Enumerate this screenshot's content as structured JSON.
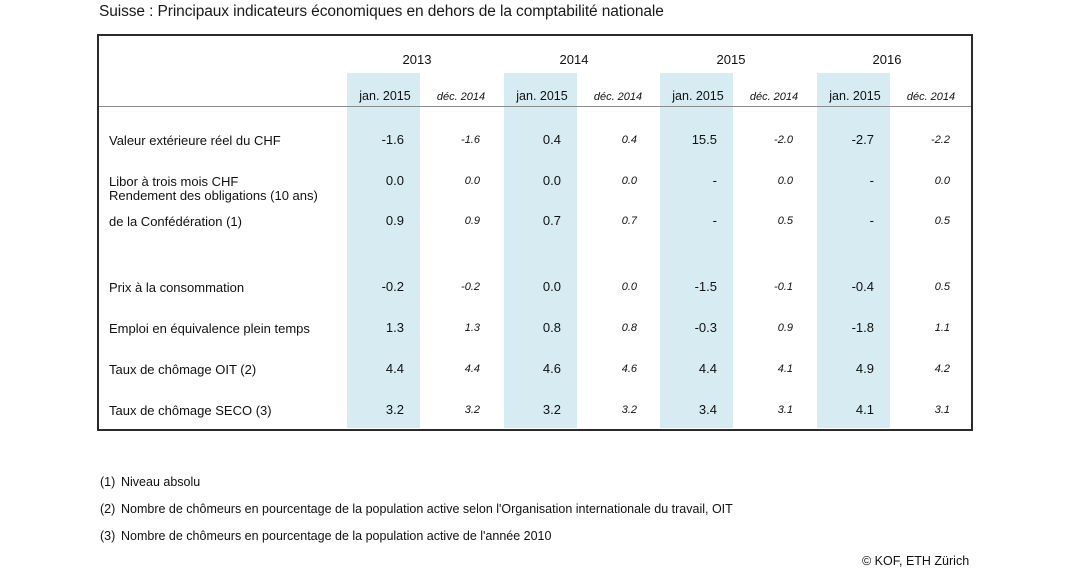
{
  "title": "Suisse : Principaux indicateurs économiques en dehors de la comptabilité nationale",
  "years": [
    "2013",
    "2014",
    "2015",
    "2016"
  ],
  "col_labels": {
    "main": "jan. 2015",
    "sub": "déc. 2014"
  },
  "rows": [
    {
      "label": [
        "Valeur extérieure réel du CHF"
      ],
      "values": [
        "-1.6",
        "-1.6",
        "0.4",
        "0.4",
        "15.5",
        "-2.0",
        "-2.7",
        "-2.2"
      ]
    },
    {
      "label": [
        "Libor à trois mois CHF"
      ],
      "values": [
        "0.0",
        "0.0",
        "0.0",
        "0.0",
        "-",
        "0.0",
        "-",
        "0.0"
      ]
    },
    {
      "label": [
        "Rendement des obligations (10 ans)",
        "de la Confédération (1)"
      ],
      "values": [
        "0.9",
        "0.9",
        "0.7",
        "0.7",
        "-",
        "0.5",
        "-",
        "0.5"
      ]
    },
    {
      "label": [
        "Prix à la consommation"
      ],
      "values": [
        "-0.2",
        "-0.2",
        "0.0",
        "0.0",
        "-1.5",
        "-0.1",
        "-0.4",
        "0.5"
      ]
    },
    {
      "label": [
        "Emploi en équivalence plein temps"
      ],
      "values": [
        "1.3",
        "1.3",
        "0.8",
        "0.8",
        "-0.3",
        "0.9",
        "-1.8",
        "1.1"
      ]
    },
    {
      "label": [
        "Taux de chômage OIT (2)"
      ],
      "values": [
        "4.4",
        "4.4",
        "4.6",
        "4.6",
        "4.4",
        "4.1",
        "4.9",
        "4.2"
      ]
    },
    {
      "label": [
        "Taux de chômage SECO (3)"
      ],
      "values": [
        "3.2",
        "3.2",
        "3.2",
        "3.2",
        "3.4",
        "3.1",
        "4.1",
        "3.1"
      ]
    }
  ],
  "notes": [
    {
      "num": "(1)",
      "text": "Niveau absolu"
    },
    {
      "num": "(2)",
      "text": "Nombre de chômeurs en pourcentage de la population active selon l'Organisation internationale du travail, OIT"
    },
    {
      "num": "(3)",
      "text": "Nombre de chômeurs en pourcentage de la population active de l'année 2010"
    }
  ],
  "copyright": "© KOF, ETH Zürich",
  "colors": {
    "highlight": "#d6ebf2",
    "border": "#2b2b2b"
  }
}
